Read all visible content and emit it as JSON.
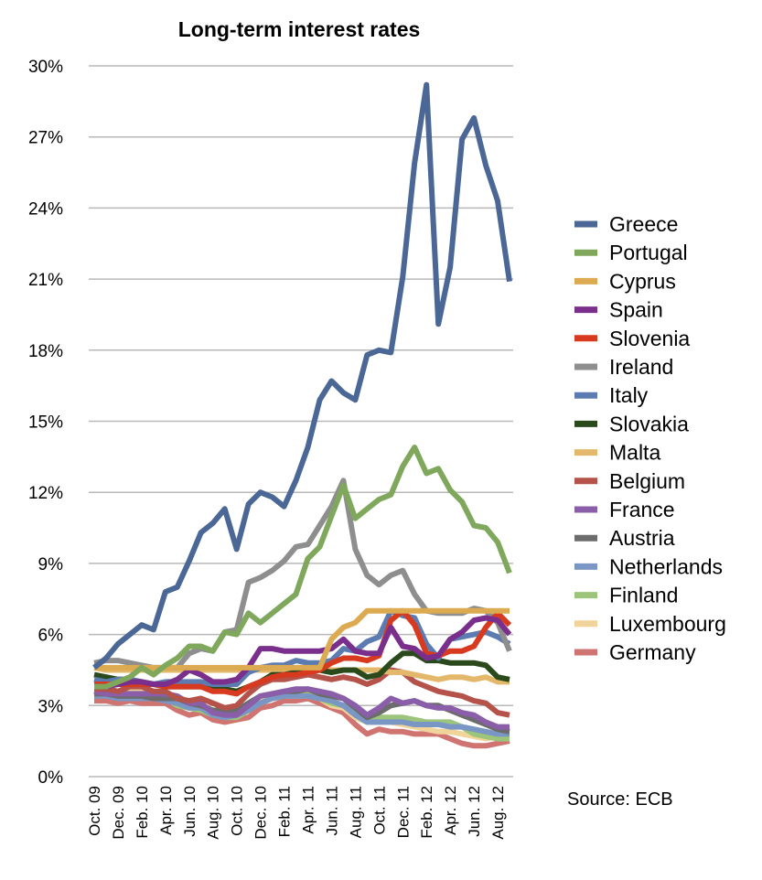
{
  "chart_data": {
    "type": "line",
    "title": "Long-term interest rates",
    "source": "Source: ECB",
    "y_unit": "%",
    "ylim": [
      0,
      30
    ],
    "y_ticks": [
      "0%",
      "3%",
      "6%",
      "9%",
      "12%",
      "15%",
      "18%",
      "21%",
      "24%",
      "27%",
      "30%"
    ],
    "y_tick_values": [
      0,
      3,
      6,
      9,
      12,
      15,
      18,
      21,
      24,
      27,
      30
    ],
    "grid": true,
    "legend_position": "right",
    "x": [
      "Oct. 09",
      "Nov. 09",
      "Dec. 09",
      "Jan. 10",
      "Feb. 10",
      "Mar. 10",
      "Apr. 10",
      "May 10",
      "Jun. 10",
      "Jul. 10",
      "Aug. 10",
      "Sep. 10",
      "Oct. 10",
      "Nov. 10",
      "Dec. 10",
      "Jan. 11",
      "Feb. 11",
      "Mar. 11",
      "Apr. 11",
      "May 11",
      "Jun. 11",
      "Jul. 11",
      "Aug. 11",
      "Sep. 11",
      "Oct. 11",
      "Nov. 11",
      "Dec. 11",
      "Jan. 12",
      "Feb. 12",
      "Mar. 12",
      "Apr. 12",
      "May 12",
      "Jun. 12",
      "Jul. 12",
      "Aug. 12",
      "Sep. 12"
    ],
    "x_tick_labels": [
      "Oct. 09",
      "",
      "Dec. 09",
      "",
      "Feb. 10",
      "",
      "Apr. 10",
      "",
      "Jun. 10",
      "",
      "Aug. 10",
      "",
      "Oct. 10",
      "",
      "Dec. 10",
      "",
      "Feb. 11",
      "",
      "Apr. 11",
      "",
      "Jun. 11",
      "",
      "Aug. 11",
      "",
      "Oct. 11",
      "",
      "Dec. 11",
      "",
      "Feb. 12",
      "",
      "Apr. 12",
      "",
      "Jun. 12",
      "",
      "Aug. 12",
      ""
    ],
    "series": [
      {
        "name": "Greece",
        "color": "#4a6796",
        "values": [
          4.6,
          5.0,
          5.6,
          6.0,
          6.4,
          6.2,
          7.8,
          8.0,
          9.1,
          10.3,
          10.7,
          11.3,
          9.6,
          11.5,
          12.0,
          11.8,
          11.4,
          12.5,
          13.9,
          15.9,
          16.7,
          16.2,
          15.9,
          17.8,
          18.0,
          17.9,
          21.1,
          25.9,
          29.2,
          19.1,
          21.5,
          26.9,
          27.8,
          25.8,
          24.3,
          20.9
        ]
      },
      {
        "name": "Portugal",
        "color": "#7fa85c",
        "values": [
          3.8,
          3.8,
          4.0,
          4.2,
          4.6,
          4.3,
          4.7,
          5.0,
          5.5,
          5.5,
          5.3,
          6.1,
          6.0,
          6.9,
          6.5,
          6.9,
          7.3,
          7.7,
          9.2,
          9.7,
          11.0,
          12.3,
          10.9,
          11.3,
          11.7,
          11.9,
          13.1,
          13.9,
          12.8,
          13.0,
          12.1,
          11.6,
          10.6,
          10.5,
          9.9,
          8.6
        ]
      },
      {
        "name": "Cyprus",
        "color": "#dcaa50",
        "values": [
          4.6,
          4.6,
          4.6,
          4.6,
          4.6,
          4.6,
          4.6,
          4.6,
          4.6,
          4.6,
          4.6,
          4.6,
          4.6,
          4.6,
          4.6,
          4.6,
          4.6,
          4.6,
          4.6,
          4.6,
          5.8,
          6.3,
          6.5,
          7.0,
          7.0,
          7.0,
          7.0,
          7.0,
          7.0,
          7.0,
          7.0,
          7.0,
          7.0,
          7.0,
          7.0,
          7.0
        ]
      },
      {
        "name": "Spain",
        "color": "#7a2f8c",
        "values": [
          3.8,
          3.8,
          3.9,
          4.0,
          4.0,
          3.9,
          3.9,
          4.1,
          4.5,
          4.3,
          4.0,
          4.0,
          4.1,
          4.6,
          5.4,
          5.4,
          5.3,
          5.3,
          5.3,
          5.3,
          5.4,
          5.8,
          5.3,
          5.2,
          5.2,
          6.3,
          5.5,
          5.4,
          5.0,
          5.1,
          5.8,
          6.1,
          6.6,
          6.7,
          6.6,
          6.0
        ]
      },
      {
        "name": "Slovenia",
        "color": "#d83a1f",
        "values": [
          3.9,
          3.9,
          3.9,
          3.9,
          3.9,
          3.9,
          3.8,
          3.8,
          3.8,
          3.8,
          3.6,
          3.6,
          3.5,
          3.8,
          4.0,
          4.2,
          4.3,
          4.3,
          4.4,
          4.5,
          4.8,
          5.0,
          5.0,
          4.9,
          5.1,
          6.6,
          7.0,
          6.4,
          5.2,
          5.1,
          5.3,
          5.3,
          5.5,
          6.3,
          6.9,
          6.4
        ]
      },
      {
        "name": "Ireland",
        "color": "#8e8e8e",
        "values": [
          4.8,
          4.9,
          4.9,
          4.8,
          4.7,
          4.6,
          4.6,
          4.6,
          5.2,
          5.4,
          5.3,
          6.1,
          6.2,
          8.2,
          8.4,
          8.7,
          9.1,
          9.7,
          9.8,
          10.6,
          11.4,
          12.5,
          9.6,
          8.5,
          8.1,
          8.5,
          8.7,
          7.7,
          7.0,
          6.9,
          6.9,
          6.9,
          7.1,
          7.0,
          6.5,
          5.3
        ]
      },
      {
        "name": "Italy",
        "color": "#5c7bb0",
        "values": [
          4.1,
          4.0,
          4.1,
          4.1,
          4.0,
          3.9,
          4.0,
          4.0,
          4.0,
          4.0,
          3.9,
          3.9,
          3.9,
          4.4,
          4.6,
          4.7,
          4.7,
          4.9,
          4.8,
          4.8,
          4.9,
          5.4,
          5.3,
          5.7,
          5.9,
          7.0,
          6.8,
          6.7,
          5.6,
          5.0,
          5.8,
          5.9,
          6.0,
          6.1,
          5.9,
          5.6
        ]
      },
      {
        "name": "Slovakia",
        "color": "#2a4a1c",
        "values": [
          4.3,
          4.2,
          4.1,
          4.1,
          4.0,
          3.9,
          3.8,
          3.8,
          3.8,
          3.8,
          3.7,
          3.7,
          3.6,
          3.8,
          4.0,
          4.3,
          4.3,
          4.4,
          4.5,
          4.5,
          4.4,
          4.5,
          4.5,
          4.2,
          4.3,
          4.8,
          5.2,
          5.2,
          4.9,
          4.9,
          4.8,
          4.8,
          4.8,
          4.7,
          4.2,
          4.1
        ]
      },
      {
        "name": "Malta",
        "color": "#e3b86a",
        "values": [
          4.6,
          4.5,
          4.5,
          4.5,
          4.5,
          4.5,
          4.5,
          4.5,
          4.5,
          4.5,
          4.5,
          4.5,
          4.5,
          4.5,
          4.5,
          4.5,
          4.5,
          4.5,
          4.5,
          4.5,
          4.5,
          4.5,
          4.5,
          4.5,
          4.5,
          4.4,
          4.4,
          4.3,
          4.2,
          4.1,
          4.2,
          4.2,
          4.1,
          4.2,
          4.0,
          4.0
        ]
      },
      {
        "name": "Belgium",
        "color": "#b5534a",
        "values": [
          3.7,
          3.7,
          3.6,
          3.8,
          3.8,
          3.6,
          3.6,
          3.3,
          3.2,
          3.3,
          3.1,
          2.9,
          3.0,
          3.5,
          3.9,
          4.1,
          4.1,
          4.2,
          4.3,
          4.2,
          4.1,
          4.2,
          4.1,
          3.9,
          4.1,
          4.5,
          4.4,
          4.0,
          3.8,
          3.6,
          3.5,
          3.4,
          3.2,
          3.1,
          2.7,
          2.6
        ]
      },
      {
        "name": "France",
        "color": "#8a5ea8",
        "values": [
          3.6,
          3.5,
          3.5,
          3.5,
          3.5,
          3.5,
          3.5,
          3.4,
          3.1,
          3.1,
          2.7,
          2.6,
          2.6,
          3.0,
          3.4,
          3.5,
          3.6,
          3.7,
          3.7,
          3.6,
          3.5,
          3.3,
          3.0,
          2.6,
          2.9,
          3.3,
          3.1,
          3.2,
          3.0,
          2.9,
          2.9,
          2.7,
          2.6,
          2.3,
          2.1,
          2.1
        ]
      },
      {
        "name": "Austria",
        "color": "#6c6c6c",
        "values": [
          3.5,
          3.5,
          3.4,
          3.4,
          3.4,
          3.3,
          3.3,
          3.3,
          3.1,
          3.0,
          2.8,
          2.8,
          2.8,
          3.1,
          3.4,
          3.5,
          3.6,
          3.6,
          3.7,
          3.5,
          3.4,
          3.3,
          2.9,
          2.5,
          2.7,
          3.0,
          3.1,
          3.2,
          3.0,
          3.0,
          2.8,
          2.6,
          2.4,
          2.2,
          2.0,
          1.9
        ]
      },
      {
        "name": "Netherlands",
        "color": "#7a96c4",
        "values": [
          3.4,
          3.4,
          3.3,
          3.3,
          3.3,
          3.3,
          3.2,
          3.1,
          2.9,
          2.9,
          2.6,
          2.5,
          2.6,
          2.8,
          3.1,
          3.3,
          3.4,
          3.4,
          3.4,
          3.3,
          3.2,
          3.0,
          2.6,
          2.3,
          2.3,
          2.3,
          2.3,
          2.2,
          2.2,
          2.2,
          2.1,
          2.1,
          2.0,
          1.9,
          1.8,
          1.8
        ]
      },
      {
        "name": "Finland",
        "color": "#9cc47a",
        "values": [
          3.5,
          3.5,
          3.4,
          3.4,
          3.4,
          3.3,
          3.3,
          3.0,
          2.9,
          2.8,
          2.6,
          2.5,
          2.5,
          2.8,
          3.1,
          3.3,
          3.4,
          3.5,
          3.5,
          3.3,
          3.1,
          3.0,
          2.7,
          2.5,
          2.5,
          2.5,
          2.5,
          2.4,
          2.3,
          2.3,
          2.3,
          2.1,
          1.8,
          1.7,
          1.6,
          1.6
        ]
      },
      {
        "name": "Luxembourg",
        "color": "#f0d49a",
        "values": [
          3.7,
          3.7,
          3.6,
          3.6,
          3.6,
          3.5,
          3.5,
          3.3,
          3.1,
          3.0,
          2.8,
          2.7,
          2.7,
          3.0,
          3.2,
          3.3,
          3.4,
          3.4,
          3.4,
          3.3,
          3.0,
          2.9,
          2.5,
          2.3,
          2.3,
          2.3,
          2.2,
          2.1,
          2.0,
          1.9,
          1.9,
          1.8,
          1.7,
          1.6,
          1.7,
          1.7
        ]
      },
      {
        "name": "Germany",
        "color": "#cf7470",
        "values": [
          3.2,
          3.2,
          3.1,
          3.2,
          3.1,
          3.1,
          3.1,
          2.8,
          2.6,
          2.7,
          2.4,
          2.3,
          2.4,
          2.5,
          2.9,
          3.0,
          3.2,
          3.2,
          3.3,
          3.1,
          2.9,
          2.7,
          2.2,
          1.8,
          2.0,
          1.9,
          1.9,
          1.8,
          1.8,
          1.8,
          1.6,
          1.4,
          1.3,
          1.3,
          1.4,
          1.5
        ]
      }
    ]
  }
}
